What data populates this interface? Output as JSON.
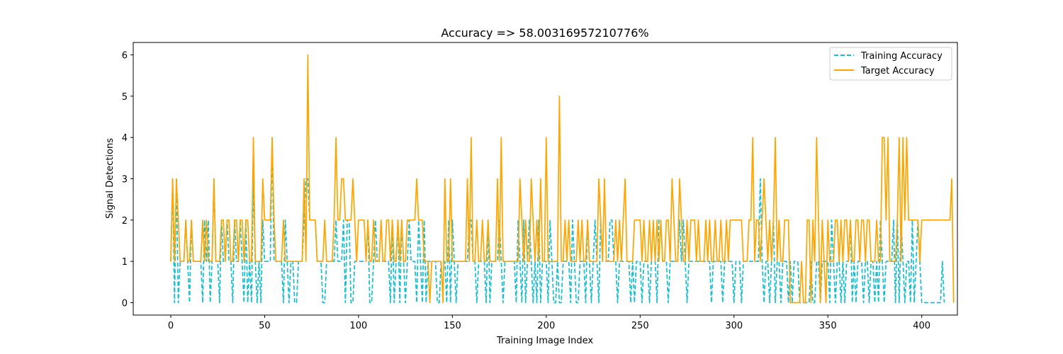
{
  "chart_data": {
    "type": "line",
    "title": "Accuracy => 58.00316957210776%",
    "xlabel": "Training Image Index",
    "ylabel": "Signal Detections",
    "xlim": [
      -20,
      419
    ],
    "ylim": [
      -0.3,
      6.3
    ],
    "xticks": [
      0,
      50,
      100,
      150,
      200,
      250,
      300,
      350,
      400
    ],
    "yticks": [
      0,
      1,
      2,
      3,
      4,
      5,
      6
    ],
    "grid": false,
    "legend": "top-right",
    "series": [
      {
        "name": "Training Accuracy",
        "style": "dashed",
        "color": "#17becf",
        "values": [
          1,
          3,
          0,
          3,
          0,
          1,
          1,
          1,
          2,
          1,
          0,
          2,
          1,
          1,
          1,
          1,
          1,
          0,
          2,
          1,
          2,
          0,
          1,
          3,
          1,
          1,
          0,
          2,
          1,
          1,
          2,
          1,
          1,
          0,
          2,
          1,
          1,
          2,
          1,
          0,
          2,
          0,
          1,
          0,
          3,
          1,
          0,
          1,
          0,
          2,
          1,
          1,
          1,
          1,
          4,
          1,
          1,
          1,
          1,
          1,
          0,
          2,
          1,
          0,
          1,
          1,
          0,
          0,
          1,
          1,
          1,
          2,
          3,
          3,
          2,
          2,
          2,
          2,
          1,
          1,
          1,
          0,
          0,
          1,
          1,
          1,
          1,
          1,
          2,
          1,
          1,
          1,
          2,
          0,
          2,
          2,
          0,
          0,
          1,
          1,
          1,
          1,
          1,
          1,
          1,
          2,
          0,
          0,
          1,
          2,
          1,
          1,
          1,
          1,
          1,
          1,
          1,
          0,
          2,
          0,
          1,
          2,
          0,
          2,
          1,
          0,
          1,
          2,
          1,
          1,
          1,
          0,
          2,
          1,
          0,
          2,
          0,
          1,
          1,
          1,
          1,
          1,
          0,
          0,
          1,
          1,
          1,
          0,
          2,
          0,
          2,
          1,
          0,
          1,
          1,
          1,
          1,
          1,
          1,
          2,
          2,
          1,
          1,
          0,
          1,
          1,
          1,
          1,
          0,
          2,
          0,
          1,
          1,
          1,
          1,
          2,
          1,
          0,
          1,
          1,
          1,
          1,
          1,
          1,
          0,
          2,
          1,
          0,
          2,
          0,
          1,
          2,
          1,
          0,
          1,
          0,
          2,
          0,
          1,
          1,
          1,
          0,
          2,
          1,
          0,
          0,
          1,
          0,
          0,
          1,
          1,
          1,
          1,
          0,
          2,
          1,
          0,
          0,
          1,
          1,
          1,
          0,
          2,
          1,
          0,
          1,
          2,
          1,
          0,
          2,
          1,
          1,
          1,
          1,
          2,
          2,
          1,
          1,
          0,
          1,
          1,
          1,
          1,
          1,
          1,
          0,
          1,
          0,
          1,
          1,
          1,
          0,
          1,
          1,
          1,
          0,
          1,
          1,
          1,
          0,
          2,
          2,
          1,
          1,
          1,
          0,
          1,
          1,
          1,
          1,
          1,
          2,
          1,
          2,
          1,
          0,
          1,
          1,
          1,
          1,
          1,
          1,
          1,
          1,
          1,
          1,
          1,
          1,
          0,
          1,
          1,
          1,
          1,
          1,
          0,
          1,
          1,
          1,
          1,
          1,
          0,
          1,
          1,
          1,
          0,
          1,
          1,
          1,
          1,
          1,
          1,
          1,
          1,
          1,
          3,
          1,
          0,
          1,
          1,
          0,
          1,
          2,
          0,
          1,
          1,
          0,
          1,
          1,
          1,
          0,
          1,
          0,
          1,
          1,
          1,
          0,
          0,
          0,
          0,
          0,
          0,
          1,
          0,
          0,
          1,
          1,
          0,
          1,
          1,
          1,
          1,
          0,
          2,
          1,
          0,
          1,
          1,
          0,
          1,
          0,
          1,
          1,
          2,
          0,
          1,
          0,
          1,
          1,
          1,
          0,
          1,
          1,
          0,
          1,
          1,
          0,
          1,
          0,
          2,
          1,
          0,
          1,
          1,
          1,
          1,
          2,
          0,
          2,
          0,
          2,
          1,
          0,
          1,
          1,
          0,
          2,
          0,
          1,
          2,
          1,
          0,
          0,
          0,
          0,
          0,
          0,
          0,
          0,
          0,
          0,
          0,
          1,
          0
        ]
      },
      {
        "name": "Target Accuracy",
        "style": "solid",
        "color": "#ffa500",
        "values": [
          1,
          3,
          1,
          3,
          2,
          1,
          1,
          1,
          2,
          1,
          1,
          2,
          1,
          1,
          1,
          1,
          1,
          2,
          1,
          2,
          1,
          1,
          1,
          3,
          1,
          1,
          1,
          2,
          2,
          1,
          2,
          2,
          1,
          1,
          2,
          2,
          1,
          2,
          2,
          1,
          2,
          2,
          1,
          1,
          4,
          1,
          1,
          1,
          1,
          3,
          2,
          2,
          2,
          2,
          4,
          2,
          1,
          1,
          1,
          1,
          2,
          1,
          1,
          1,
          1,
          1,
          1,
          1,
          1,
          1,
          1,
          3,
          1,
          6,
          2,
          2,
          2,
          2,
          1,
          1,
          1,
          1,
          2,
          1,
          1,
          1,
          1,
          2,
          4,
          2,
          2,
          3,
          3,
          2,
          2,
          2,
          2,
          3,
          2,
          1,
          2,
          2,
          2,
          2,
          1,
          2,
          1,
          1,
          2,
          1,
          1,
          1,
          2,
          1,
          1,
          2,
          2,
          1,
          2,
          1,
          1,
          2,
          1,
          2,
          1,
          1,
          2,
          2,
          2,
          2,
          2,
          3,
          2,
          2,
          2,
          1,
          1,
          1,
          0,
          1,
          1,
          1,
          1,
          1,
          1,
          0,
          3,
          1,
          1,
          3,
          1,
          1,
          1,
          1,
          1,
          1,
          1,
          1,
          3,
          1,
          4,
          1,
          1,
          2,
          1,
          1,
          2,
          1,
          1,
          2,
          1,
          1,
          1,
          1,
          3,
          1,
          4,
          1,
          1,
          1,
          1,
          1,
          1,
          1,
          1,
          1,
          3,
          2,
          1,
          2,
          1,
          1,
          3,
          2,
          1,
          2,
          1,
          3,
          1,
          1,
          4,
          1,
          1,
          1,
          1,
          1,
          1,
          5,
          1,
          1,
          2,
          1,
          2,
          1,
          1,
          1,
          1,
          2,
          1,
          2,
          1,
          1,
          2,
          1,
          1,
          1,
          1,
          1,
          3,
          2,
          1,
          3,
          1,
          1,
          1,
          1,
          1,
          2,
          1,
          2,
          1,
          2,
          3,
          1,
          1,
          1,
          1,
          2,
          2,
          2,
          2,
          1,
          2,
          1,
          1,
          2,
          1,
          2,
          1,
          2,
          1,
          2,
          1,
          1,
          2,
          2,
          1,
          3,
          2,
          1,
          1,
          3,
          2,
          1,
          1,
          2,
          1,
          2,
          2,
          2,
          1,
          2,
          1,
          1,
          1,
          2,
          1,
          2,
          1,
          1,
          2,
          1,
          1,
          2,
          1,
          1,
          2,
          1,
          2,
          2,
          2,
          2,
          2,
          2,
          2,
          1,
          1,
          1,
          2,
          2,
          4,
          1,
          2,
          2,
          1,
          2,
          3,
          2,
          1,
          2,
          1,
          2,
          4,
          1,
          2,
          1,
          1,
          2,
          2,
          2,
          0,
          0,
          0,
          0,
          0,
          0,
          1,
          0,
          0,
          2,
          2,
          0,
          2,
          1,
          4,
          2,
          0,
          2,
          1,
          0,
          2,
          1,
          1,
          1,
          2,
          2,
          1,
          2,
          1,
          2,
          2,
          1,
          2,
          1,
          1,
          2,
          2,
          1,
          2,
          2,
          1,
          2,
          2,
          1,
          1,
          1,
          2,
          1,
          1,
          4,
          4,
          2,
          4,
          1,
          1,
          1,
          1,
          2,
          4,
          1,
          4,
          2,
          4,
          2,
          2,
          2,
          2,
          2,
          2,
          1,
          2,
          2,
          2,
          2,
          2,
          2,
          2,
          2,
          2,
          2,
          2,
          2,
          2,
          2,
          2,
          2,
          3,
          0
        ]
      }
    ]
  }
}
